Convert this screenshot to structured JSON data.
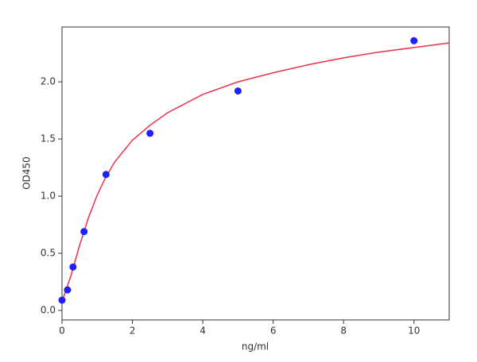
{
  "chart_data": {
    "type": "scatter",
    "xlabel": "ng/ml",
    "ylabel": "OD450",
    "x": [
      0,
      0.156,
      0.3125,
      0.625,
      1.25,
      2.5,
      5,
      10
    ],
    "values": [
      0.09,
      0.18,
      0.38,
      0.69,
      1.19,
      1.55,
      1.92,
      2.36
    ],
    "color": "#1f1fff",
    "fit": {
      "color": "#e8334a",
      "x": [
        0,
        0.125,
        0.25,
        0.5,
        0.75,
        1,
        1.25,
        1.5,
        2,
        2.5,
        3,
        4,
        5,
        6,
        7,
        8,
        9,
        10,
        11
      ],
      "values": [
        0.08,
        0.19,
        0.3,
        0.57,
        0.81,
        1.01,
        1.17,
        1.3,
        1.49,
        1.62,
        1.73,
        1.89,
        2.0,
        2.08,
        2.15,
        2.21,
        2.26,
        2.3,
        2.34
      ]
    },
    "xlim": [
      0,
      11
    ],
    "xticks": [
      0,
      2,
      4,
      6,
      8,
      10
    ],
    "ylim": [
      -0.083,
      2.48
    ],
    "yticks": [
      {
        "value": 0,
        "label": "0.0"
      },
      {
        "value": 0.5,
        "label": "0.5"
      },
      {
        "value": 1,
        "label": "1.0"
      },
      {
        "value": 1.5,
        "label": "1.5"
      },
      {
        "value": 2,
        "label": "2.0"
      }
    ],
    "grid": false
  }
}
